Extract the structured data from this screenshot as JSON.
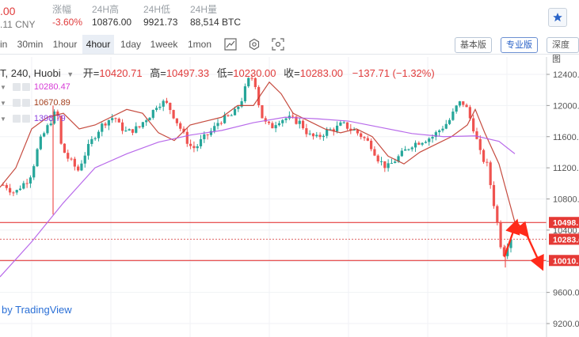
{
  "stats": [
    {
      "label": "",
      "value": ".00",
      "sub": ".11 CNY"
    },
    {
      "label": "涨幅",
      "value": "-3.60%"
    },
    {
      "label": "24H高",
      "value": "10876.00"
    },
    {
      "label": "24H低",
      "value": "9921.73"
    },
    {
      "label": "24H量",
      "value": "88,514 BTC"
    }
  ],
  "toolbar": {
    "timeframes": [
      "in",
      "30min",
      "1hour",
      "4hour",
      "1day",
      "1week",
      "1mon"
    ],
    "active_timeframe": "4hour",
    "versions": [
      "基本版",
      "专业版",
      "深度图"
    ],
    "active_version": "专业版"
  },
  "legend": {
    "symbol": "T, 240, Huobi",
    "open_label": "开=",
    "open": "10420.71",
    "high_label": "高=",
    "high": "10497.33",
    "low_label": "低=",
    "low": "10230.00",
    "close_label": "收=",
    "close": "10283.00",
    "change": "−137.71 (−1.32%)"
  },
  "indicators": [
    {
      "value": "10280.47",
      "color": "#d63ad6"
    },
    {
      "value": "10670.89",
      "color": "#a33f1d"
    },
    {
      "value": "1398.79",
      "color": "#8a3ee0"
    }
  ],
  "watermark": "by TradingView",
  "colors": {
    "up": "#26a69a",
    "down": "#ef5350",
    "ma_fast": "#c0392b",
    "ma_slow": "#b05ae8",
    "arrow": "#ff2a1a",
    "line": "#e02020"
  },
  "chart_data": {
    "type": "candlestick",
    "y_axis": {
      "min": 9200,
      "max": 12400,
      "ticks": [
        12400,
        12000,
        11600,
        11200,
        10800,
        10400,
        10000,
        9600,
        9200
      ]
    },
    "price_tags": [
      {
        "value": 10498,
        "label": "10498.",
        "bg": "#e53935"
      },
      {
        "value": 10283,
        "label": "10283.(",
        "bg": "#e53935"
      },
      {
        "value": 10010,
        "label": "10010.",
        "bg": "#e53935"
      }
    ],
    "h_lines": [
      {
        "value": 10498,
        "style": "solid"
      },
      {
        "value": 10283,
        "style": "dotted"
      },
      {
        "value": 10010,
        "style": "solid"
      }
    ],
    "close_path": [
      10980,
      10960,
      10900,
      10880,
      10950,
      11000,
      11050,
      11150,
      11380,
      11550,
      11650,
      11750,
      11850,
      11950,
      11500,
      11380,
      11300,
      11250,
      11150,
      11280,
      11400,
      11500,
      11600,
      11680,
      11750,
      11800,
      11830,
      11860,
      11750,
      11700,
      11650,
      11680,
      11700,
      11720,
      11800,
      11850,
      11900,
      12000,
      12030,
      12040,
      12000,
      11900,
      11800,
      11700,
      11600,
      11500,
      11450,
      11480,
      11550,
      11600,
      11650,
      11700,
      11780,
      11820,
      11840,
      11860,
      11900,
      12000,
      12100,
      12280,
      12380,
      12300,
      12000,
      11800,
      11750,
      11720,
      11780,
      11820,
      11830,
      11840,
      11820,
      11800,
      11780,
      11700,
      11620,
      11600,
      11580,
      11620,
      11660,
      11680,
      11700,
      11720,
      11760,
      11740,
      11700,
      11680,
      11640,
      11600,
      11550,
      11500,
      11400,
      11300,
      11250,
      11200,
      11250,
      11300,
      11350,
      11400,
      11450,
      11500,
      11520,
      11540,
      11560,
      11580,
      11600,
      11650,
      11700,
      11750,
      11800,
      11900,
      12000,
      12050,
      12000,
      11850,
      11700,
      11500,
      11300,
      11300,
      11000,
      10700,
      10400,
      10050,
      10200,
      10283
    ],
    "series": [
      {
        "type": "candles"
      },
      {
        "type": "ma_fast",
        "points": [
          [
            0,
            10950
          ],
          [
            20,
            11200
          ],
          [
            40,
            11700
          ],
          [
            60,
            11850
          ],
          [
            80,
            11900
          ],
          [
            100,
            11700
          ],
          [
            120,
            11750
          ],
          [
            140,
            11850
          ],
          [
            160,
            11950
          ],
          [
            180,
            11900
          ],
          [
            200,
            11650
          ],
          [
            220,
            11550
          ],
          [
            240,
            11750
          ],
          [
            260,
            11800
          ],
          [
            280,
            11850
          ],
          [
            300,
            12000
          ],
          [
            320,
            12000
          ],
          [
            340,
            12300
          ],
          [
            355,
            12150
          ],
          [
            370,
            11900
          ],
          [
            390,
            11800
          ],
          [
            410,
            11700
          ],
          [
            430,
            11650
          ],
          [
            450,
            11700
          ],
          [
            470,
            11600
          ],
          [
            490,
            11350
          ],
          [
            510,
            11250
          ],
          [
            530,
            11400
          ],
          [
            550,
            11500
          ],
          [
            570,
            11600
          ],
          [
            590,
            11750
          ],
          [
            600,
            11950
          ],
          [
            612,
            11650
          ],
          [
            630,
            11250
          ],
          [
            650,
            10500
          ]
        ]
      },
      {
        "type": "ma_slow",
        "points": [
          [
            0,
            9800
          ],
          [
            40,
            10250
          ],
          [
            80,
            10750
          ],
          [
            120,
            11200
          ],
          [
            160,
            11380
          ],
          [
            200,
            11530
          ],
          [
            240,
            11620
          ],
          [
            280,
            11680
          ],
          [
            320,
            11780
          ],
          [
            360,
            11850
          ],
          [
            400,
            11830
          ],
          [
            440,
            11800
          ],
          [
            480,
            11720
          ],
          [
            520,
            11640
          ],
          [
            560,
            11600
          ],
          [
            600,
            11610
          ],
          [
            630,
            11540
          ],
          [
            650,
            11380
          ]
        ]
      }
    ],
    "arrows": [
      {
        "from": [
          637,
          10060
        ],
        "to": [
          652,
          10500
        ]
      },
      {
        "from": [
          652,
          10500
        ],
        "to": [
          665,
          10340
        ]
      },
      {
        "from": [
          665,
          10340
        ],
        "to": [
          684,
          9920
        ]
      }
    ]
  }
}
